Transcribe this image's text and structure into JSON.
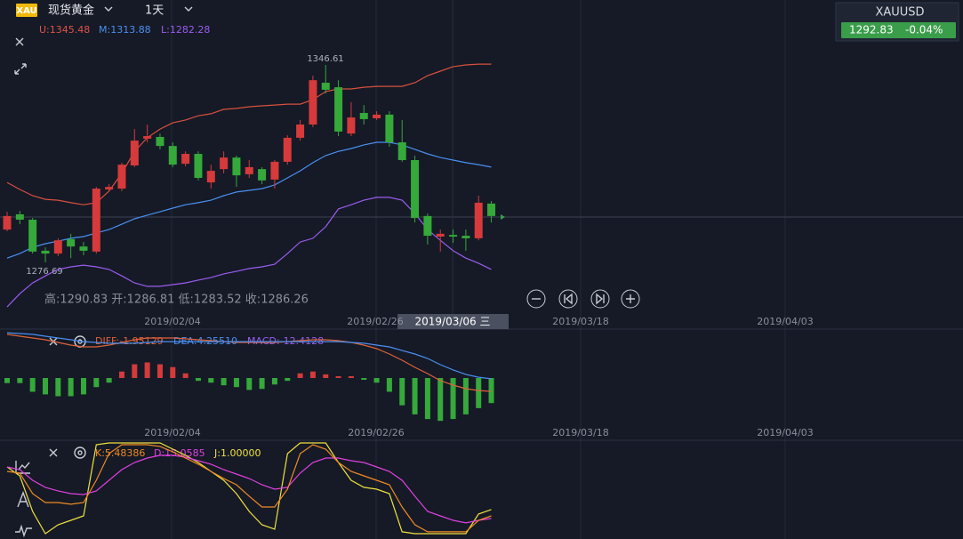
{
  "header": {
    "logo": "XAU",
    "symbol": "现货黄金",
    "period": "1天"
  },
  "ticker": {
    "symbol": "XAUUSD",
    "price": "1292.83",
    "change": "-0.04%"
  },
  "price_panel": {
    "legend": {
      "upper": "U:1345.48",
      "middle": "M:1313.88",
      "lower": "L:1282.28"
    },
    "high_label": "1346.61",
    "low_label": "1276.69",
    "ohlc_text": "高:1290.83 开:1286.81 低:1283.52 收:1286.26",
    "ylim": [
      1259.35,
      1369.6
    ],
    "candles": {
      "open": [
        1288.3,
        1293.7,
        1291.8,
        1280.8,
        1279.8,
        1284.9,
        1282.3,
        1280.5,
        1302.5,
        1302.8,
        1311.0,
        1320.5,
        1321.1,
        1317.9,
        1311.6,
        1315.1,
        1305.0,
        1309.7,
        1313.8,
        1307.9,
        1309.7,
        1306.0,
        1312.3,
        1320.8,
        1325.5,
        1340.3,
        1338.7,
        1322.3,
        1329.6,
        1327.7,
        1329.0,
        1319.2,
        1312.9,
        1293.1,
        1285.8,
        1286.4,
        1286.1,
        1285.2,
        1297.5
      ],
      "high": [
        1294.6,
        1294.9,
        1292.4,
        1282.0,
        1285.2,
        1286.8,
        1283.9,
        1303.4,
        1304.4,
        1312.0,
        1323.9,
        1325.5,
        1322.3,
        1319.2,
        1316.0,
        1316.0,
        1311.3,
        1316.0,
        1314.5,
        1312.9,
        1310.4,
        1312.9,
        1321.7,
        1327.1,
        1342.8,
        1346.61,
        1341.2,
        1333.4,
        1332.4,
        1330.2,
        1330.2,
        1327.1,
        1314.5,
        1294.0,
        1288.3,
        1288.3,
        1288.3,
        1300.3,
        1298.4
      ],
      "low": [
        1287.7,
        1290.2,
        1279.8,
        1276.69,
        1278.9,
        1278.2,
        1279.2,
        1279.8,
        1301.9,
        1301.9,
        1310.4,
        1319.2,
        1316.7,
        1310.4,
        1310.7,
        1305.7,
        1302.8,
        1308.2,
        1303.4,
        1306.6,
        1304.4,
        1302.8,
        1311.3,
        1319.8,
        1324.6,
        1336.5,
        1321.4,
        1321.4,
        1325.5,
        1327.1,
        1317.6,
        1312.3,
        1290.8,
        1283.0,
        1280.5,
        1283.6,
        1280.8,
        1284.5,
        1290.8
      ],
      "close": [
        1293.1,
        1291.8,
        1280.5,
        1279.8,
        1284.5,
        1282.3,
        1280.8,
        1302.8,
        1303.4,
        1311.3,
        1319.8,
        1321.4,
        1317.9,
        1311.3,
        1315.1,
        1306.6,
        1309.1,
        1313.8,
        1307.5,
        1310.4,
        1305.7,
        1312.3,
        1320.8,
        1325.5,
        1341.2,
        1337.8,
        1323.0,
        1328.0,
        1327.4,
        1329.0,
        1319.2,
        1312.9,
        1292.4,
        1286.1,
        1286.8,
        1285.8,
        1285.2,
        1297.8,
        1293.1
      ]
    },
    "bands": {
      "upper": [
        1305.0,
        1302.5,
        1300.3,
        1299.0,
        1298.7,
        1297.8,
        1297.1,
        1297.8,
        1301.9,
        1308.2,
        1316.0,
        1320.8,
        1323.9,
        1326.1,
        1327.1,
        1328.6,
        1329.3,
        1330.9,
        1331.2,
        1331.8,
        1332.1,
        1332.4,
        1332.7,
        1332.7,
        1334.3,
        1337.2,
        1338.1,
        1338.1,
        1338.7,
        1339.0,
        1339.0,
        1339.0,
        1340.3,
        1342.8,
        1344.4,
        1346.0,
        1346.6,
        1346.9,
        1346.9
      ],
      "middle": [
        1278.2,
        1279.8,
        1282.0,
        1283.3,
        1284.2,
        1285.2,
        1285.8,
        1287.1,
        1288.3,
        1290.2,
        1292.1,
        1293.4,
        1294.6,
        1295.9,
        1297.1,
        1297.8,
        1298.7,
        1300.3,
        1301.6,
        1302.2,
        1302.8,
        1304.1,
        1306.6,
        1309.1,
        1312.0,
        1314.5,
        1316.0,
        1317.0,
        1318.3,
        1319.2,
        1319.2,
        1318.3,
        1316.7,
        1315.1,
        1313.8,
        1312.9,
        1312.0,
        1311.3,
        1310.4
      ],
      "lower": [
        1260.9,
        1265.6,
        1269.4,
        1271.9,
        1274.2,
        1275.1,
        1275.7,
        1275.1,
        1274.2,
        1271.9,
        1269.4,
        1268.2,
        1268.2,
        1268.8,
        1269.4,
        1270.4,
        1271.3,
        1272.6,
        1273.5,
        1274.5,
        1275.1,
        1276.0,
        1279.8,
        1283.9,
        1285.2,
        1289.3,
        1295.6,
        1297.1,
        1298.7,
        1299.7,
        1299.7,
        1298.7,
        1294.0,
        1288.3,
        1284.5,
        1280.8,
        1278.2,
        1276.4,
        1274.2
      ]
    }
  },
  "dates": [
    "2019/02/04",
    "2019/02/26",
    "2019/03/18",
    "2019/04/03"
  ],
  "crosshair_date": "2019/03/06 三",
  "macd_panel": {
    "legend": {
      "diff": "DIFF:-1.95129",
      "dea": "DEA:4.25510",
      "macd": "MACD:-12.4128"
    },
    "ylim": [
      -30.8,
      24.2
    ],
    "diff": [
      21.6,
      20.7,
      19.8,
      18.9,
      17.6,
      16.3,
      15.4,
      15.4,
      16.3,
      17.6,
      18.9,
      19.8,
      19.8,
      19.8,
      19.4,
      18.9,
      18.5,
      18.0,
      17.6,
      17.6,
      17.6,
      17.6,
      18.0,
      18.5,
      18.9,
      18.9,
      18.5,
      17.6,
      16.3,
      14.5,
      11.9,
      8.8,
      5.3,
      2.2,
      -1.3,
      -3.5,
      -5.3,
      -6.2,
      -6.6
    ],
    "dea": [
      22.4,
      22.0,
      21.6,
      20.7,
      19.8,
      18.9,
      18.0,
      17.6,
      17.2,
      17.2,
      17.2,
      17.6,
      18.0,
      18.0,
      18.0,
      18.0,
      18.0,
      18.0,
      18.0,
      18.0,
      18.0,
      18.0,
      18.0,
      18.0,
      18.0,
      18.0,
      18.0,
      17.6,
      17.2,
      16.3,
      15.4,
      13.6,
      11.9,
      9.7,
      6.6,
      4.0,
      1.8,
      0.4,
      -0.4
    ],
    "histogram": [
      -2.5,
      -2.5,
      -6.8,
      -8.1,
      -9.0,
      -9.0,
      -8.1,
      -4.5,
      -2.3,
      3.2,
      6.8,
      7.7,
      6.8,
      5.4,
      2.3,
      -1.4,
      -2.3,
      -3.6,
      -4.5,
      -5.9,
      -5.4,
      -3.2,
      -1.4,
      2.3,
      3.2,
      1.8,
      0.9,
      0.9,
      -0.9,
      -2.3,
      -6.8,
      -13.5,
      -18.0,
      -20.3,
      -21.2,
      -20.3,
      -18.0,
      -14.9,
      -12.4
    ]
  },
  "kdj_panel": {
    "legend": {
      "k": "K:5.48386",
      "d": "D:15.0585",
      "j": "J:1.00000"
    },
    "ylim": [
      -5.9,
      102.9
    ],
    "k": [
      68.6,
      66.7,
      44.1,
      34.3,
      34.3,
      32.4,
      34.3,
      58.8,
      88.2,
      98.0,
      98.0,
      98.0,
      96.1,
      90.2,
      83.3,
      76.5,
      68.6,
      60.8,
      53.9,
      41.2,
      29.4,
      29.4,
      49.0,
      88.2,
      98.0,
      93.1,
      78.4,
      68.6,
      63.7,
      58.8,
      53.9,
      29.4,
      9.8,
      2.0,
      2.0,
      2.0,
      2.0,
      14.7,
      19.6
    ],
    "d": [
      73.5,
      70.6,
      58.8,
      51.0,
      47.1,
      44.1,
      43.1,
      47.1,
      58.8,
      70.6,
      78.4,
      83.3,
      86.3,
      86.3,
      84.3,
      80.4,
      76.5,
      70.6,
      65.7,
      60.8,
      53.9,
      49.0,
      51.0,
      66.7,
      78.4,
      83.3,
      83.3,
      80.4,
      78.4,
      73.5,
      68.6,
      58.8,
      41.2,
      24.5,
      19.6,
      14.7,
      11.8,
      14.7,
      16.7
    ],
    "j": [
      73.5,
      63.7,
      24.5,
      0,
      9.8,
      14.7,
      19.6,
      98.0,
      100,
      100,
      100,
      100,
      100,
      93.1,
      86.3,
      78.4,
      68.6,
      58.8,
      44.1,
      24.5,
      9.8,
      4.9,
      88.2,
      100,
      100,
      100,
      78.4,
      58.8,
      51.0,
      49.0,
      44.1,
      2.0,
      0,
      0,
      0,
      0,
      0,
      21.6,
      26.5
    ]
  }
}
